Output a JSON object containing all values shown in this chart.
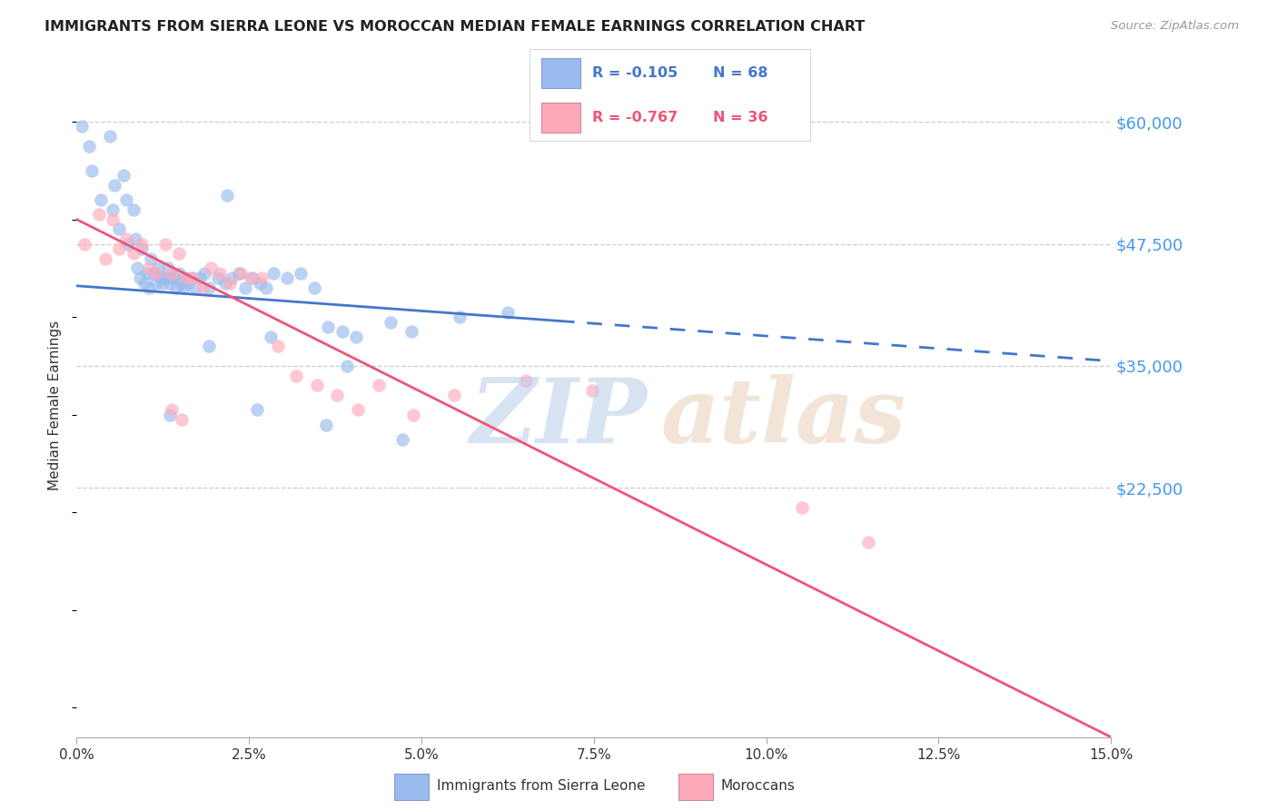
{
  "title": "IMMIGRANTS FROM SIERRA LEONE VS MOROCCAN MEDIAN FEMALE EARNINGS CORRELATION CHART",
  "source": "Source: ZipAtlas.com",
  "ylabel": "Median Female Earnings",
  "xlabel_ticks": [
    "0.0%",
    "2.5%",
    "5.0%",
    "7.5%",
    "10.0%",
    "12.5%",
    "15.0%"
  ],
  "xlabel_vals": [
    0.0,
    2.5,
    5.0,
    7.5,
    10.0,
    12.5,
    15.0
  ],
  "ytick_labels": [
    "$60,000",
    "$47,500",
    "$35,000",
    "$22,500"
  ],
  "ytick_vals": [
    60000,
    47500,
    35000,
    22500
  ],
  "ylim": [
    -3000,
    65000
  ],
  "xlim": [
    0.0,
    15.0
  ],
  "color_blue": "#99bbee",
  "color_pink": "#ffaabb",
  "color_line_blue": "#4477cc",
  "color_line_pink": "#ee5577",
  "color_axis_labels": "#4499ee",
  "blue_trend_x0": 0.0,
  "blue_trend_y0": 43200,
  "blue_trend_x1": 15.0,
  "blue_trend_y1": 35500,
  "blue_solid_x1": 7.0,
  "pink_trend_x0": 0.0,
  "pink_trend_y0": 50000,
  "pink_trend_x1": 15.0,
  "pink_trend_y1": -3000,
  "sierra_leone_x": [
    0.08,
    0.22,
    0.18,
    0.35,
    0.48,
    0.55,
    0.52,
    0.62,
    0.68,
    0.72,
    0.75,
    0.82,
    0.85,
    0.88,
    0.92,
    0.95,
    0.98,
    1.02,
    1.05,
    1.08,
    1.12,
    1.15,
    1.18,
    1.22,
    1.25,
    1.28,
    1.32,
    1.35,
    1.38,
    1.42,
    1.45,
    1.48,
    1.52,
    1.55,
    1.58,
    1.62,
    1.65,
    1.72,
    1.78,
    1.85,
    1.92,
    2.05,
    2.15,
    2.25,
    2.35,
    2.45,
    2.55,
    2.65,
    2.75,
    2.85,
    3.05,
    3.25,
    3.45,
    3.65,
    3.85,
    4.05,
    4.55,
    4.85,
    5.55,
    6.25,
    1.35,
    2.62,
    2.82,
    3.62,
    4.72,
    2.18,
    3.92,
    1.92
  ],
  "sierra_leone_y": [
    59500,
    55000,
    57500,
    52000,
    58500,
    53500,
    51000,
    49000,
    54500,
    52000,
    47500,
    51000,
    48000,
    45000,
    44000,
    47000,
    43500,
    44500,
    43000,
    46000,
    44500,
    43500,
    45000,
    44000,
    43500,
    44000,
    45000,
    43500,
    44000,
    44000,
    43000,
    44500,
    43500,
    43000,
    44000,
    43500,
    44000,
    43000,
    44000,
    44500,
    43000,
    44000,
    43500,
    44000,
    44500,
    43000,
    44000,
    43500,
    43000,
    44500,
    44000,
    44500,
    43000,
    39000,
    38500,
    38000,
    39500,
    38500,
    40000,
    40500,
    30000,
    30500,
    38000,
    29000,
    27500,
    52500,
    35000,
    37000
  ],
  "moroccan_x": [
    0.12,
    0.32,
    0.42,
    0.52,
    0.62,
    0.72,
    0.82,
    0.95,
    1.05,
    1.15,
    1.28,
    1.38,
    1.48,
    1.58,
    1.68,
    1.82,
    1.95,
    2.08,
    2.22,
    2.38,
    2.52,
    2.68,
    2.92,
    3.18,
    3.48,
    3.78,
    4.08,
    4.38,
    4.88,
    5.48,
    6.52,
    7.48,
    10.52,
    11.48,
    1.38,
    1.52
  ],
  "moroccan_y": [
    47500,
    50500,
    46000,
    50000,
    47000,
    48000,
    46500,
    47500,
    45000,
    44500,
    47500,
    44500,
    46500,
    44000,
    44000,
    43000,
    45000,
    44500,
    43500,
    44500,
    44000,
    44000,
    37000,
    34000,
    33000,
    32000,
    30500,
    33000,
    30000,
    32000,
    33500,
    32500,
    20500,
    17000,
    30500,
    29500
  ]
}
